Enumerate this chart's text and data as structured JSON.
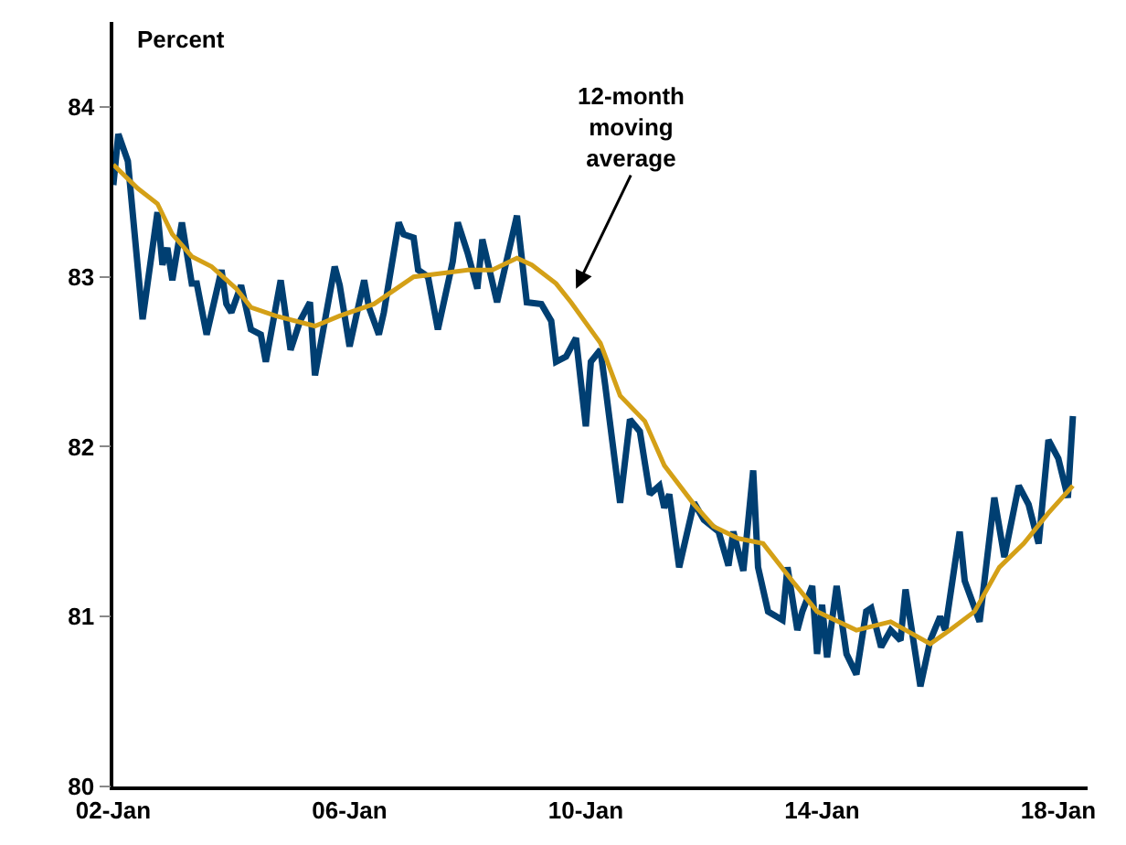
{
  "chart_data": {
    "type": "line",
    "ylabel": "Percent",
    "xlim": [
      "2002-01",
      "2018-07"
    ],
    "xticks": [
      {
        "value": "2002-01",
        "label": "02-Jan"
      },
      {
        "value": "2006-01",
        "label": "06-Jan"
      },
      {
        "value": "2010-01",
        "label": "10-Jan"
      },
      {
        "value": "2014-01",
        "label": "14-Jan"
      },
      {
        "value": "2018-01",
        "label": "18-Jan"
      }
    ],
    "ylim": [
      80,
      84.5
    ],
    "yticks": [
      80,
      81,
      82,
      83,
      84
    ],
    "marker": "none",
    "line_style": "solid",
    "annotations": [
      {
        "text": "12-month\nmoving\naverage",
        "x": "2009-11",
        "y": 82.93
      }
    ],
    "series": [
      {
        "color": "#003f72",
        "x": [
          "2002-01",
          "2002-02",
          "2002-04",
          "2002-07",
          "2002-10",
          "2002-11",
          "2002-12",
          "2003-01",
          "2003-03",
          "2003-05",
          "2003-06",
          "2003-08",
          "2003-11",
          "2003-12",
          "2004-01",
          "2004-03",
          "2004-05",
          "2004-07",
          "2004-08",
          "2004-11",
          "2005-01",
          "2005-03",
          "2005-05",
          "2005-06",
          "2005-10",
          "2005-11",
          "2006-01",
          "2006-04",
          "2006-05",
          "2006-07",
          "2006-08",
          "2006-11",
          "2006-12",
          "2007-02",
          "2007-03",
          "2007-05",
          "2007-07",
          "2007-10",
          "2007-11",
          "2008-01",
          "2008-03",
          "2008-04",
          "2008-07",
          "2008-11",
          "2009-01",
          "2009-04",
          "2009-06",
          "2009-07",
          "2009-09",
          "2009-11",
          "2010-01",
          "2010-02",
          "2010-04",
          "2010-05",
          "2010-08",
          "2010-10",
          "2010-12",
          "2011-02",
          "2011-04",
          "2011-05",
          "2011-06",
          "2011-08",
          "2011-11",
          "2012-01",
          "2012-04",
          "2012-06",
          "2012-07",
          "2012-09",
          "2012-11",
          "2012-12",
          "2013-02",
          "2013-05",
          "2013-06",
          "2013-08",
          "2013-09",
          "2013-11",
          "2013-12",
          "2014-01",
          "2014-02",
          "2014-04",
          "2014-06",
          "2014-08",
          "2014-10",
          "2014-11",
          "2015-01",
          "2015-03",
          "2015-05",
          "2015-06",
          "2015-09",
          "2015-11",
          "2016-01",
          "2016-02",
          "2016-05",
          "2016-06",
          "2016-09",
          "2016-12",
          "2017-02",
          "2017-05",
          "2017-07",
          "2017-09",
          "2017-11",
          "2018-01",
          "2018-03",
          "2018-04"
        ],
        "values": [
          83.54,
          83.84,
          83.68,
          82.75,
          83.38,
          83.07,
          83.17,
          82.98,
          83.32,
          82.96,
          82.96,
          82.66,
          83.04,
          82.84,
          82.79,
          82.95,
          82.69,
          82.66,
          82.5,
          82.98,
          82.57,
          82.74,
          82.85,
          82.42,
          83.06,
          82.95,
          82.59,
          82.98,
          82.82,
          82.66,
          82.79,
          83.32,
          83.25,
          83.23,
          83.04,
          83.0,
          82.69,
          83.09,
          83.32,
          83.14,
          82.93,
          83.22,
          82.85,
          83.36,
          82.85,
          82.84,
          82.74,
          82.5,
          82.53,
          82.64,
          82.12,
          82.5,
          82.57,
          82.36,
          81.67,
          82.16,
          82.09,
          81.72,
          81.77,
          81.64,
          81.72,
          81.29,
          81.67,
          81.57,
          81.5,
          81.3,
          81.5,
          81.27,
          81.86,
          81.29,
          81.03,
          80.98,
          81.29,
          80.92,
          81.03,
          81.18,
          80.78,
          81.07,
          80.76,
          81.18,
          80.78,
          80.66,
          81.03,
          81.05,
          80.82,
          80.92,
          80.86,
          81.16,
          80.59,
          80.86,
          81.0,
          80.92,
          81.5,
          81.21,
          80.97,
          81.7,
          81.35,
          81.77,
          81.66,
          81.43,
          82.04,
          81.93,
          81.7,
          82.18
        ]
      },
      {
        "color": "#d4a017",
        "x": [
          "2002-01",
          "2002-06",
          "2002-10",
          "2003-01",
          "2003-05",
          "2003-09",
          "2004-02",
          "2004-05",
          "2004-10",
          "2005-06",
          "2005-11",
          "2006-06",
          "2007-02",
          "2008-01",
          "2008-06",
          "2008-11",
          "2009-02",
          "2009-07",
          "2009-10",
          "2010-04",
          "2010-08",
          "2011-01",
          "2011-05",
          "2011-11",
          "2012-03",
          "2012-08",
          "2013-01",
          "2013-07",
          "2013-12",
          "2014-08",
          "2015-03",
          "2015-11",
          "2016-03",
          "2016-08",
          "2017-01",
          "2017-06",
          "2017-11",
          "2018-04"
        ],
        "values": [
          83.66,
          83.52,
          83.43,
          83.25,
          83.12,
          83.06,
          82.93,
          82.82,
          82.77,
          82.71,
          82.77,
          82.84,
          83.0,
          83.04,
          83.04,
          83.11,
          83.07,
          82.96,
          82.85,
          82.61,
          82.3,
          82.15,
          81.89,
          81.66,
          81.53,
          81.46,
          81.43,
          81.21,
          81.03,
          80.92,
          80.97,
          80.84,
          80.92,
          81.03,
          81.29,
          81.43,
          81.61,
          81.77
        ]
      }
    ]
  }
}
